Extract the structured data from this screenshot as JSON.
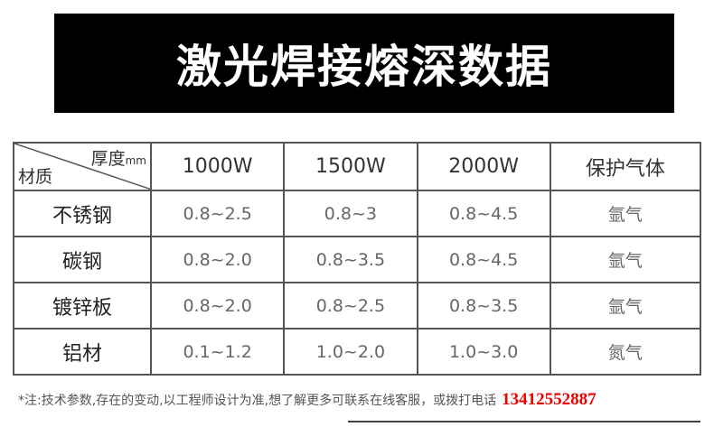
{
  "title": "激光焊接熔深数据",
  "table": {
    "corner_thickness": "厚度",
    "corner_unit": "mm",
    "corner_material": "材质",
    "headers": [
      "1000W",
      "1500W",
      "2000W",
      "保护气体"
    ],
    "rows": [
      {
        "material": "不锈钢",
        "values": [
          "0.8~2.5",
          "0.8~3",
          "0.8~4.5"
        ],
        "gas": "氩气"
      },
      {
        "material": "碳钢",
        "values": [
          "0.8~2.0",
          "0.8~3.5",
          "0.8~4.5"
        ],
        "gas": "氩气"
      },
      {
        "material": "镀锌板",
        "values": [
          "0.8~2.0",
          "0.8~2.5",
          "0.8~3.5"
        ],
        "gas": "氩气"
      },
      {
        "material": "铝材",
        "values": [
          "0.1~1.2",
          "1.0~2.0",
          "1.0~3.0"
        ],
        "gas": "氮气"
      }
    ]
  },
  "note": {
    "text": "*注:技术参数,存在的变动,以工程师设计为准,想了解更多可联系在线客服，或拨打电话",
    "phone": "13412552887",
    "phone_color": "#e00000"
  }
}
